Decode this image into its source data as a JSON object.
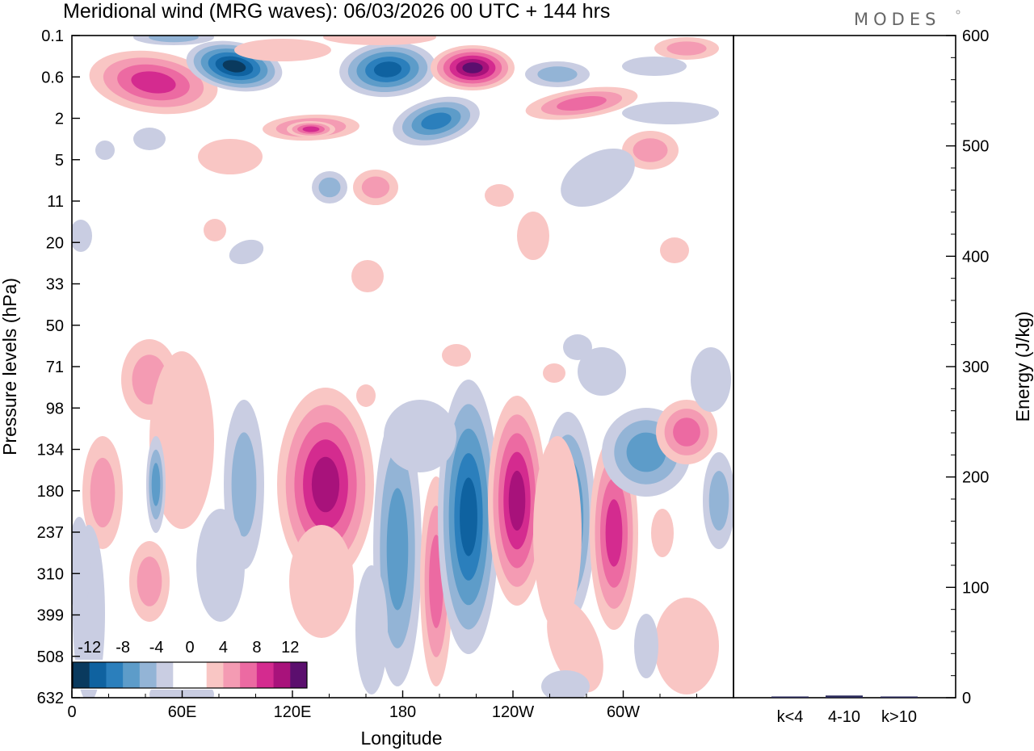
{
  "logo": "MODES",
  "chart_data": [
    {
      "type": "heatmap",
      "title": "Meridional wind (MRG waves):  06/03/2026  00 UTC  + 144 hrs",
      "xlabel": "Longitude",
      "ylabel": "Pressure levels (hPa)",
      "x_ticks": [
        "0",
        "60E",
        "120E",
        "180",
        "120W",
        "60W"
      ],
      "x_tick_values": [
        0,
        60,
        120,
        180,
        240,
        300
      ],
      "xlim": [
        0,
        360
      ],
      "y_ticks": [
        "0.1",
        "0.6",
        "2",
        "5",
        "11",
        "20",
        "33",
        "50",
        "71",
        "98",
        "134",
        "180",
        "237",
        "310",
        "399",
        "508",
        "632"
      ],
      "colorbar_labels": [
        "-12",
        "-8",
        "-4",
        "0",
        "4",
        "8",
        "12"
      ],
      "colorbar_colors": [
        "#0a3a5e",
        "#0f62a0",
        "#2b7fbc",
        "#5d9cc9",
        "#93b4d6",
        "#c9cde2",
        "#ffffff",
        "#ffffff",
        "#f9c6c4",
        "#f49bb3",
        "#ec6aa2",
        "#d42b8f",
        "#a8127b",
        "#5b0f6e"
      ],
      "features": [
        {
          "lon": 36,
          "level": 0.6,
          "value": 9
        },
        {
          "lon": 70,
          "level": 0.6,
          "value": -13
        },
        {
          "lon": 135,
          "level": 0.6,
          "value": -12
        },
        {
          "lon": 155,
          "level": 0.6,
          "value": 13
        },
        {
          "lon": 270,
          "level": 1.0,
          "value": 6
        },
        {
          "lon": 195,
          "level": 2,
          "value": -10
        },
        {
          "lon": 82,
          "level": 2,
          "value": 6
        },
        {
          "lon": 80,
          "level": 180,
          "value": 11
        },
        {
          "lon": 197,
          "level": 180,
          "value": -11
        },
        {
          "lon": 241,
          "level": 180,
          "value": 11
        },
        {
          "lon": 265,
          "level": 180,
          "value": -9
        },
        {
          "lon": 294,
          "level": 237,
          "value": 8
        },
        {
          "lon": 334,
          "level": 134,
          "value": 8
        },
        {
          "lon": 313,
          "level": 134,
          "value": -7
        }
      ]
    },
    {
      "type": "bar",
      "ylabel": "Energy (J/kg)",
      "categories": [
        "k<4",
        "4-10",
        "k>10"
      ],
      "values": [
        0.5,
        2,
        0.5
      ],
      "ylim": [
        0,
        600
      ],
      "y_ticks": [
        "0",
        "100",
        "200",
        "300",
        "400",
        "500",
        "600"
      ],
      "y_tick_values": [
        0,
        100,
        200,
        300,
        400,
        500,
        600
      ]
    }
  ]
}
